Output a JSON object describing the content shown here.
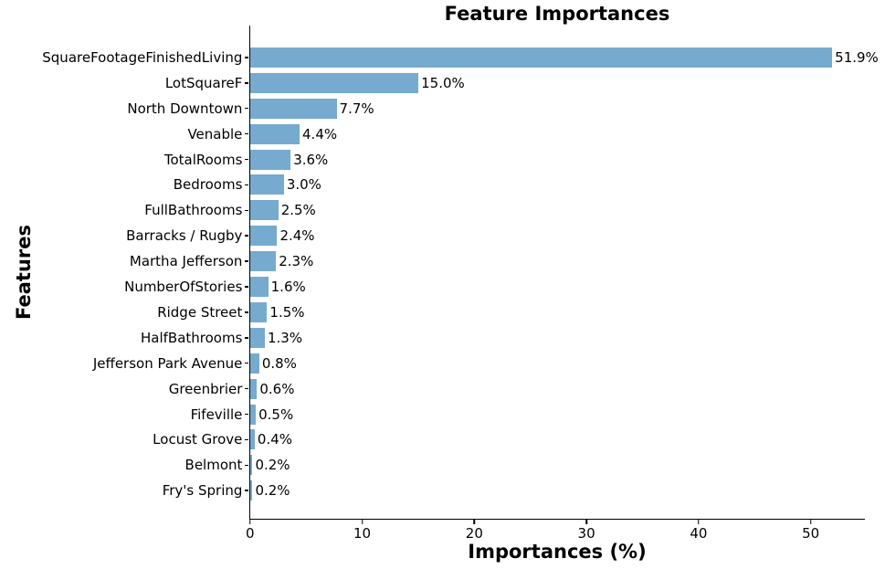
{
  "chart_data": {
    "type": "bar",
    "orientation": "horizontal",
    "title": "Feature Importances",
    "xlabel": "Importances (%)",
    "ylabel": "Features",
    "categories": [
      "SquareFootageFinishedLiving",
      "LotSquareF",
      "North Downtown",
      "Venable",
      "TotalRooms",
      "Bedrooms",
      "FullBathrooms",
      "Barracks / Rugby",
      "Martha Jefferson",
      "NumberOfStories",
      "Ridge Street",
      "HalfBathrooms",
      "Jefferson Park Avenue",
      "Greenbrier",
      "Fifeville",
      "Locust Grove",
      "Belmont",
      "Fry's Spring"
    ],
    "values": [
      51.9,
      15.0,
      7.7,
      4.4,
      3.6,
      3.0,
      2.5,
      2.4,
      2.3,
      1.6,
      1.5,
      1.3,
      0.8,
      0.6,
      0.5,
      0.4,
      0.2,
      0.2
    ],
    "value_labels": [
      "51.9%",
      "15.0%",
      "7.7%",
      "4.4%",
      "3.6%",
      "3.0%",
      "2.5%",
      "2.4%",
      "2.3%",
      "1.6%",
      "1.5%",
      "1.3%",
      "0.8%",
      "0.6%",
      "0.5%",
      "0.4%",
      "0.2%",
      "0.2%"
    ],
    "x_ticks": [
      0,
      10,
      20,
      30,
      40,
      50
    ],
    "xlim": [
      0,
      54.9
    ],
    "bar_color": "#76aace",
    "axis_color": "#000000",
    "background": "#ffffff",
    "grid": false,
    "legend": null
  }
}
